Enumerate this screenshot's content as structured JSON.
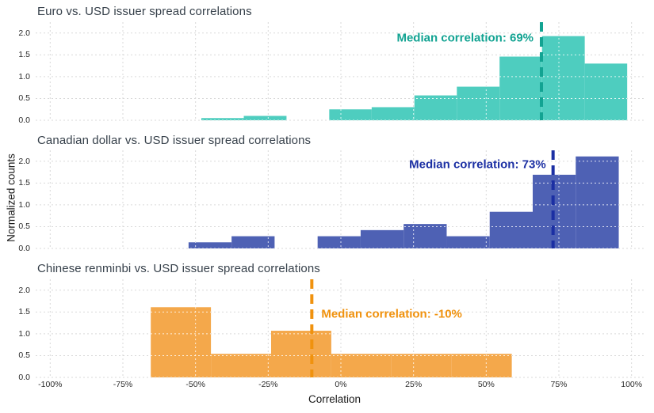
{
  "figure": {
    "background": "#ffffff",
    "xlabel": "Correlation",
    "ylabel": "Normalized counts",
    "grid_color": "#d9d9d9",
    "x_ticks": [
      {
        "label": "-100%",
        "value": -100
      },
      {
        "label": "-75%",
        "value": -75
      },
      {
        "label": "-50%",
        "value": -50
      },
      {
        "label": "-25%",
        "value": -25
      },
      {
        "label": "0%",
        "value": 0
      },
      {
        "label": "25%",
        "value": 25
      },
      {
        "label": "50%",
        "value": 50
      },
      {
        "label": "75%",
        "value": 75
      },
      {
        "label": "100%",
        "value": 100
      }
    ],
    "y_ticks": [
      {
        "label": "0.0",
        "value": 0
      },
      {
        "label": "0.5",
        "value": 0.5
      },
      {
        "label": "1.0",
        "value": 1
      },
      {
        "label": "1.5",
        "value": 1.5
      },
      {
        "label": "2.0",
        "value": 2
      }
    ]
  },
  "chart_data": [
    {
      "type": "bar",
      "subtype": "histogram",
      "title": "Euro vs. USD issuer spread correlations",
      "bar_color": "#4ecdbf",
      "median_color": "#12a392",
      "median_pct": 69,
      "median_label": "Median correlation: 69%",
      "bin_edges_pct": [
        -48.0,
        -33.4,
        -18.7,
        -4.0,
        10.6,
        25.3,
        39.9,
        54.6,
        69.2,
        83.9,
        98.5
      ],
      "densities": [
        0.05,
        0.1,
        0,
        0.25,
        0.3,
        0.57,
        0.77,
        1.46,
        1.93,
        1.3
      ],
      "xlim_pct": [
        -105,
        105
      ],
      "ylim": [
        0,
        2.25
      ],
      "grid": "dashed"
    },
    {
      "type": "bar",
      "subtype": "histogram",
      "title": "Canadian dollar vs. USD issuer spread correlations",
      "bar_color": "#4e61b4",
      "median_color": "#1b2fa3",
      "median_pct": 73,
      "median_label": "Median correlation: 73%",
      "bin_edges_pct": [
        -52.4,
        -37.6,
        -22.8,
        -8.0,
        6.8,
        21.6,
        36.4,
        51.2,
        66.0,
        80.8,
        95.6
      ],
      "densities": [
        0.14,
        0.28,
        0,
        0.28,
        0.42,
        0.56,
        0.28,
        0.84,
        1.69,
        2.11
      ],
      "xlim_pct": [
        -105,
        105
      ],
      "ylim": [
        0,
        2.25
      ],
      "grid": "dashed"
    },
    {
      "type": "bar",
      "subtype": "histogram",
      "title": "Chinese renminbi vs. USD issuer spread correlations",
      "bar_color": "#f4a84b",
      "median_color": "#f0920e",
      "median_pct": -10,
      "median_label": "Median correlation: -10%",
      "bin_edges_pct": [
        -65.4,
        -44.7,
        -24.0,
        -3.3,
        17.4,
        38.1,
        58.8
      ],
      "densities": [
        1.61,
        0.54,
        1.07,
        0.54,
        0.54,
        0.54
      ],
      "xlim_pct": [
        -105,
        105
      ],
      "ylim": [
        0,
        2.25
      ],
      "grid": "dashed"
    }
  ]
}
